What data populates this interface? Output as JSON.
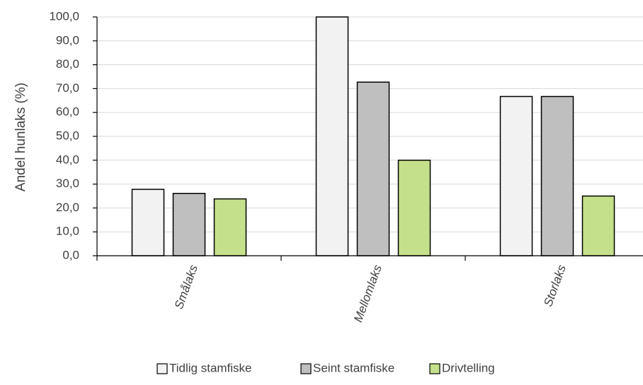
{
  "chart_data": {
    "type": "bar",
    "categories": [
      "Smålaks",
      "Mellomlaks",
      "Storlaks"
    ],
    "series": [
      {
        "name": "Tidlig stamfiske",
        "values": [
          27.8,
          100.0,
          66.7
        ],
        "color": "#f2f2f2"
      },
      {
        "name": "Seint stamfiske",
        "values": [
          26.1,
          72.7,
          66.7
        ],
        "color": "#bfbfbf"
      },
      {
        "name": "Drivtelling",
        "values": [
          23.8,
          40.0,
          25.0
        ],
        "color": "#c5e08a"
      }
    ],
    "title": "",
    "xlabel": "",
    "ylabel": "Andel hunlaks (%)",
    "ylim": [
      0,
      100
    ],
    "yticks": [
      "0,0",
      "10,0",
      "20,0",
      "30,0",
      "40,0",
      "50,0",
      "60,0",
      "70,0",
      "80,0",
      "90,0",
      "100,0"
    ],
    "grid": true,
    "legend_position": "bottom"
  }
}
